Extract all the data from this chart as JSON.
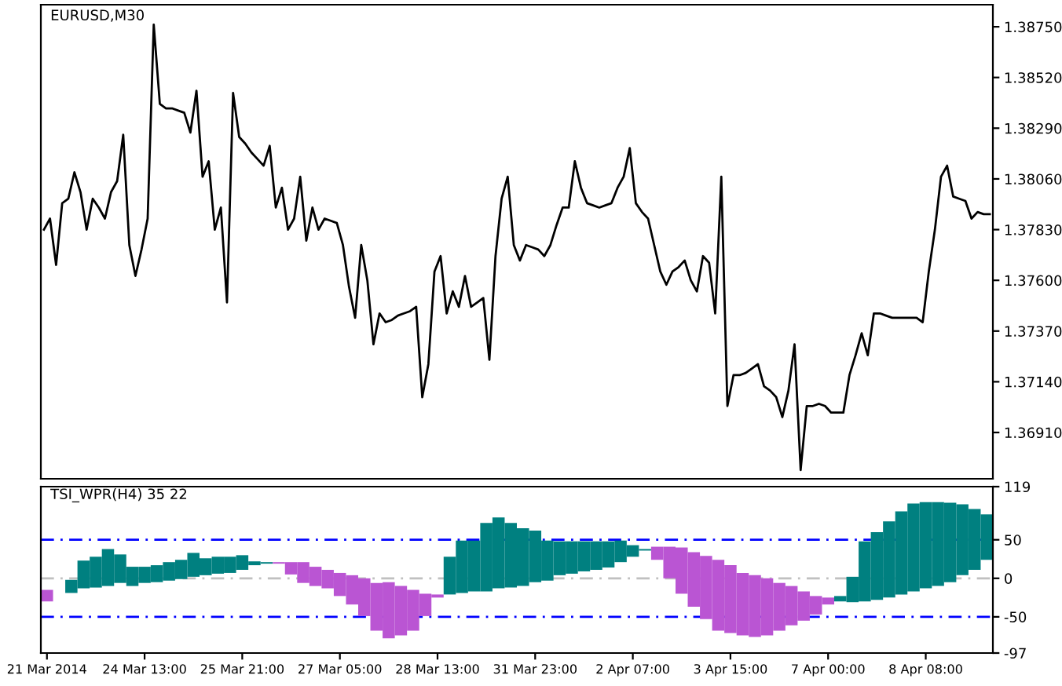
{
  "chart_data": [
    {
      "type": "line",
      "title": "EURUSD,M30",
      "tick_labels": "y",
      "ylim": [
        1.367,
        1.3885
      ],
      "yticks": [
        {
          "value": 1.3875,
          "label": "1.38750"
        },
        {
          "value": 1.3852,
          "label": "1.38520"
        },
        {
          "value": 1.3829,
          "label": "1.38290"
        },
        {
          "value": 1.3806,
          "label": "1.38060"
        },
        {
          "value": 1.3783,
          "label": "1.37830"
        },
        {
          "value": 1.376,
          "label": "1.37600"
        },
        {
          "value": 1.3737,
          "label": "1.37370"
        },
        {
          "value": 1.3714,
          "label": "1.37140"
        },
        {
          "value": 1.3691,
          "label": "1.36910"
        }
      ],
      "categories": [
        null,
        null,
        null,
        null,
        null,
        null,
        null,
        null,
        null,
        null,
        null,
        null,
        null,
        null,
        null,
        null,
        null,
        null,
        null,
        null,
        null,
        null,
        null,
        null,
        null,
        null,
        null,
        null,
        null,
        null,
        null,
        null,
        null,
        null,
        null,
        null,
        null,
        null,
        null,
        null,
        null,
        null,
        null,
        null,
        null,
        null,
        null,
        null,
        null,
        null,
        null,
        null,
        null,
        null,
        null,
        null,
        null,
        null,
        null,
        null,
        null,
        null,
        null,
        null,
        null,
        null,
        null,
        null,
        null,
        null,
        null,
        null,
        null,
        null,
        null,
        null,
        null,
        null,
        null,
        null,
        null,
        null,
        null,
        null,
        null,
        null,
        null,
        null,
        null,
        null,
        null,
        null,
        null,
        null,
        null,
        null,
        null,
        null,
        null,
        null,
        null,
        null,
        null,
        null,
        null,
        null,
        null,
        null,
        null,
        null,
        null,
        null,
        null,
        null,
        null,
        null,
        null,
        null,
        null,
        null,
        null,
        null,
        null,
        null,
        null,
        null,
        null,
        null,
        null,
        null,
        null,
        null,
        null,
        null,
        null,
        null,
        null,
        null,
        null,
        null,
        null,
        null,
        null,
        null,
        null,
        null,
        null,
        null,
        null,
        null,
        null,
        null,
        null,
        null,
        null,
        null
      ],
      "series": [
        {
          "color": "#000000",
          "values": [
            1.3783,
            1.3788,
            1.3767,
            1.3795,
            1.3797,
            1.3809,
            1.38,
            1.3783,
            1.3797,
            1.3793,
            1.3788,
            1.38,
            1.3805,
            1.3826,
            1.3776,
            1.3762,
            1.3774,
            1.3788,
            1.3876,
            1.384,
            1.3838,
            1.3838,
            1.3837,
            1.3836,
            1.3827,
            1.3846,
            1.3807,
            1.3814,
            1.3783,
            1.3793,
            1.375,
            1.3845,
            1.3825,
            1.3822,
            1.3818,
            1.3815,
            1.3812,
            1.3821,
            1.3793,
            1.3802,
            1.3783,
            1.3788,
            1.3807,
            1.3778,
            1.3793,
            1.3783,
            1.3788,
            1.3787,
            1.3786,
            1.3776,
            1.3757,
            1.3743,
            1.3776,
            1.376,
            1.3731,
            1.3745,
            1.3741,
            1.3742,
            1.3744,
            1.3745,
            1.3746,
            1.3748,
            1.3707,
            1.3722,
            1.3764,
            1.3771,
            1.3745,
            1.3755,
            1.3748,
            1.3762,
            1.3748,
            1.375,
            1.3752,
            1.3724,
            1.3771,
            1.3797,
            1.3807,
            1.3776,
            1.3769,
            1.3776,
            1.3775,
            1.3774,
            1.3771,
            1.3776,
            1.3785,
            1.3793,
            1.3793,
            1.3814,
            1.3802,
            1.3795,
            1.3794,
            1.3793,
            1.3794,
            1.3795,
            1.3802,
            1.3807,
            1.382,
            1.3795,
            1.3791,
            1.3788,
            1.3776,
            1.3764,
            1.3758,
            1.3764,
            1.3766,
            1.3769,
            1.376,
            1.3755,
            1.3771,
            1.3768,
            1.3745,
            1.3807,
            1.3703,
            1.3717,
            1.3717,
            1.3718,
            1.372,
            1.3722,
            1.3712,
            1.371,
            1.3707,
            1.3698,
            1.371,
            1.3731,
            1.3674,
            1.3703,
            1.3703,
            1.3704,
            1.3703,
            1.37,
            1.37,
            1.37,
            1.3717,
            1.3726,
            1.3736,
            1.3726,
            1.3745,
            1.3745,
            1.3744,
            1.3743,
            1.3743,
            1.3743,
            1.3743,
            1.3743,
            1.3741,
            1.3764,
            1.3783,
            1.3807,
            1.3812,
            1.3798,
            1.3797,
            1.3796,
            1.3788,
            1.3791,
            1.379,
            1.379
          ]
        }
      ]
    },
    {
      "type": "bar",
      "title": "TSI_WPR(H4) 35 22",
      "ylim": [
        -97,
        119
      ],
      "yticks": [
        119,
        50,
        0,
        -50,
        -97
      ],
      "categories": [
        "21 Mar 2014",
        null,
        null,
        null,
        null,
        null,
        null,
        null,
        "24 Mar 13:00",
        null,
        null,
        null,
        null,
        null,
        null,
        null,
        "25 Mar 21:00",
        null,
        null,
        null,
        null,
        null,
        null,
        null,
        "27 Mar 05:00",
        null,
        null,
        null,
        null,
        null,
        null,
        null,
        "28 Mar 13:00",
        null,
        null,
        null,
        null,
        null,
        null,
        null,
        "31 Mar 23:00",
        null,
        null,
        null,
        null,
        null,
        null,
        null,
        "2 Apr 07:00",
        null,
        null,
        null,
        null,
        null,
        null,
        null,
        "3 Apr 15:00",
        null,
        null,
        null,
        null,
        null,
        null,
        null,
        "7 Apr 00:00",
        null,
        null,
        null,
        null,
        null,
        null,
        null,
        "8 Apr 08:00",
        null,
        null,
        null,
        null,
        null
      ],
      "ref_lines": [
        {
          "axis": "y",
          "value": 50,
          "color": "#0000ff",
          "line_style": "dashed"
        },
        {
          "axis": "y",
          "value": -50,
          "color": "#0000ff",
          "line_style": "dashed"
        },
        {
          "axis": "y",
          "value": 0,
          "color": "#c0c0c0",
          "line_style": "dashed"
        }
      ],
      "base": [
        -30,
        null,
        -19,
        -13,
        -12,
        -10,
        -6,
        -10,
        -6,
        -5,
        -3,
        -1,
        2,
        4,
        6,
        7,
        11,
        17,
        19,
        19,
        5,
        -6,
        -10,
        -13,
        -23,
        -34,
        -49,
        -68,
        -78,
        -74,
        -68,
        -49,
        -25,
        -21,
        -19,
        -17,
        -17,
        -13,
        -12,
        -10,
        -5,
        -3,
        4,
        6,
        9,
        11,
        14,
        21,
        28,
        36,
        24,
        0,
        -20,
        -37,
        -53,
        -68,
        -71,
        -74,
        -76,
        -74,
        -68,
        -61,
        -55,
        -47,
        -34,
        -30,
        -31,
        -30,
        -28,
        -25,
        -21,
        -17,
        -13,
        -10,
        -5,
        4,
        11,
        24
      ],
      "values": [
        15,
        null,
        17,
        36,
        40,
        48,
        37,
        25,
        21,
        22,
        24,
        25,
        31,
        22,
        22,
        21,
        19,
        5,
        2,
        2,
        16,
        27,
        25,
        24,
        30,
        38,
        49,
        62,
        73,
        64,
        53,
        29,
        4,
        49,
        68,
        66,
        89,
        92,
        84,
        75,
        67,
        52,
        44,
        42,
        39,
        37,
        34,
        28,
        15,
        2,
        17,
        41,
        60,
        71,
        82,
        92,
        88,
        81,
        80,
        74,
        62,
        51,
        38,
        24,
        9,
        7,
        33,
        78,
        88,
        99,
        108,
        114,
        112,
        109,
        103,
        92,
        79,
        59
      ],
      "colors": [
        "#ba55d3",
        "#008080",
        "#008080",
        "#008080",
        "#008080",
        "#008080",
        "#008080",
        "#008080",
        "#008080",
        "#008080",
        "#008080",
        "#008080",
        "#008080",
        "#008080",
        "#008080",
        "#008080",
        "#008080",
        "#008080",
        "#008080",
        "#ba55d3",
        "#ba55d3",
        "#ba55d3",
        "#ba55d3",
        "#ba55d3",
        "#ba55d3",
        "#ba55d3",
        "#ba55d3",
        "#ba55d3",
        "#ba55d3",
        "#ba55d3",
        "#ba55d3",
        "#ba55d3",
        "#ba55d3",
        "#008080",
        "#008080",
        "#008080",
        "#008080",
        "#008080",
        "#008080",
        "#008080",
        "#008080",
        "#008080",
        "#008080",
        "#008080",
        "#008080",
        "#008080",
        "#008080",
        "#008080",
        "#008080",
        "#008080",
        "#ba55d3",
        "#ba55d3",
        "#ba55d3",
        "#ba55d3",
        "#ba55d3",
        "#ba55d3",
        "#ba55d3",
        "#ba55d3",
        "#ba55d3",
        "#ba55d3",
        "#ba55d3",
        "#ba55d3",
        "#ba55d3",
        "#ba55d3",
        "#ba55d3",
        "#008080",
        "#008080",
        "#008080",
        "#008080",
        "#008080",
        "#008080",
        "#008080",
        "#008080",
        "#008080",
        "#008080",
        "#008080",
        "#008080",
        "#008080"
      ]
    }
  ]
}
